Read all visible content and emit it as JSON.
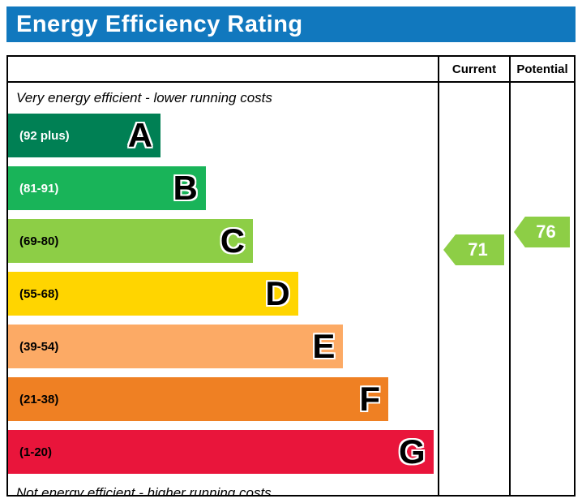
{
  "header": {
    "title": "Energy Efficiency Rating"
  },
  "columns": {
    "current": "Current",
    "potential": "Potential"
  },
  "notes": {
    "top": "Very energy efficient - lower running costs",
    "bottom": "Not energy efficient - higher running costs"
  },
  "colors": {
    "header_bg": "#1178be",
    "arrow": "#8dce46"
  },
  "chart_data": {
    "type": "bar",
    "title": "Energy Efficiency Rating",
    "bands": [
      {
        "letter": "A",
        "range": "(92 plus)",
        "color": "#008054",
        "range_color": "#ffffff",
        "width_pct": 35.5
      },
      {
        "letter": "B",
        "range": "(81-91)",
        "color": "#19b459",
        "range_color": "#ffffff",
        "width_pct": 46
      },
      {
        "letter": "C",
        "range": "(69-80)",
        "color": "#8dce46",
        "range_color": "#000000",
        "width_pct": 57
      },
      {
        "letter": "D",
        "range": "(55-68)",
        "color": "#ffd500",
        "range_color": "#000000",
        "width_pct": 67.5
      },
      {
        "letter": "E",
        "range": "(39-54)",
        "color": "#fcaa65",
        "range_color": "#000000",
        "width_pct": 78
      },
      {
        "letter": "F",
        "range": "(21-38)",
        "color": "#ef8023",
        "range_color": "#000000",
        "width_pct": 88.5
      },
      {
        "letter": "G",
        "range": "(1-20)",
        "color": "#e9153b",
        "range_color": "#000000",
        "width_pct": 99
      }
    ],
    "current": {
      "value": 71,
      "band": "C",
      "color": "#8dce46"
    },
    "potential": {
      "value": 76,
      "band": "C",
      "color": "#8dce46"
    }
  }
}
